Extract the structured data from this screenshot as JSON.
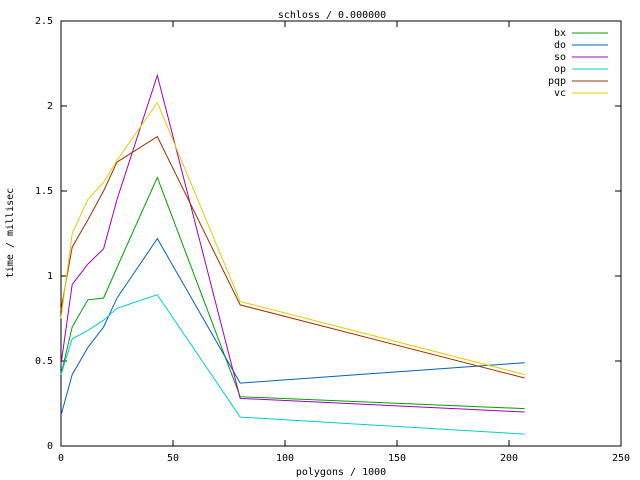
{
  "chart_data": {
    "type": "line",
    "title": "schloss / 0.000000",
    "x_label": "polygons / 1000",
    "y_label": "time / millisec",
    "x": [
      0,
      5,
      12,
      19,
      25,
      43,
      80,
      207
    ],
    "series": [
      {
        "name": "bx",
        "color": "#00a000",
        "values": [
          0.42,
          0.7,
          0.86,
          0.87,
          1.05,
          1.58,
          0.29,
          0.22
        ]
      },
      {
        "name": "do",
        "color": "#0060c0",
        "values": [
          0.18,
          0.42,
          0.58,
          0.7,
          0.87,
          1.22,
          0.37,
          0.49
        ]
      },
      {
        "name": "so",
        "color": "#a000c0",
        "values": [
          0.48,
          0.95,
          1.07,
          1.16,
          1.45,
          2.18,
          0.28,
          0.2
        ]
      },
      {
        "name": "op",
        "color": "#00d0d0",
        "values": [
          0.42,
          0.63,
          0.68,
          0.74,
          0.81,
          0.89,
          0.17,
          0.07
        ]
      },
      {
        "name": "pqp",
        "color": "#a03000",
        "values": [
          0.8,
          1.17,
          1.33,
          1.5,
          1.67,
          1.82,
          0.83,
          0.4
        ]
      },
      {
        "name": "vc",
        "color": "#e0d000",
        "values": [
          0.75,
          1.25,
          1.45,
          1.55,
          1.68,
          2.02,
          0.85,
          0.42
        ]
      }
    ],
    "xlim": [
      0,
      250
    ],
    "xticks": [
      0,
      50,
      100,
      150,
      200,
      250
    ],
    "ylim": [
      0,
      2.5
    ],
    "yticks": [
      0,
      0.5,
      1,
      1.5,
      2,
      2.5
    ],
    "grid": false,
    "legend": "top-right"
  }
}
